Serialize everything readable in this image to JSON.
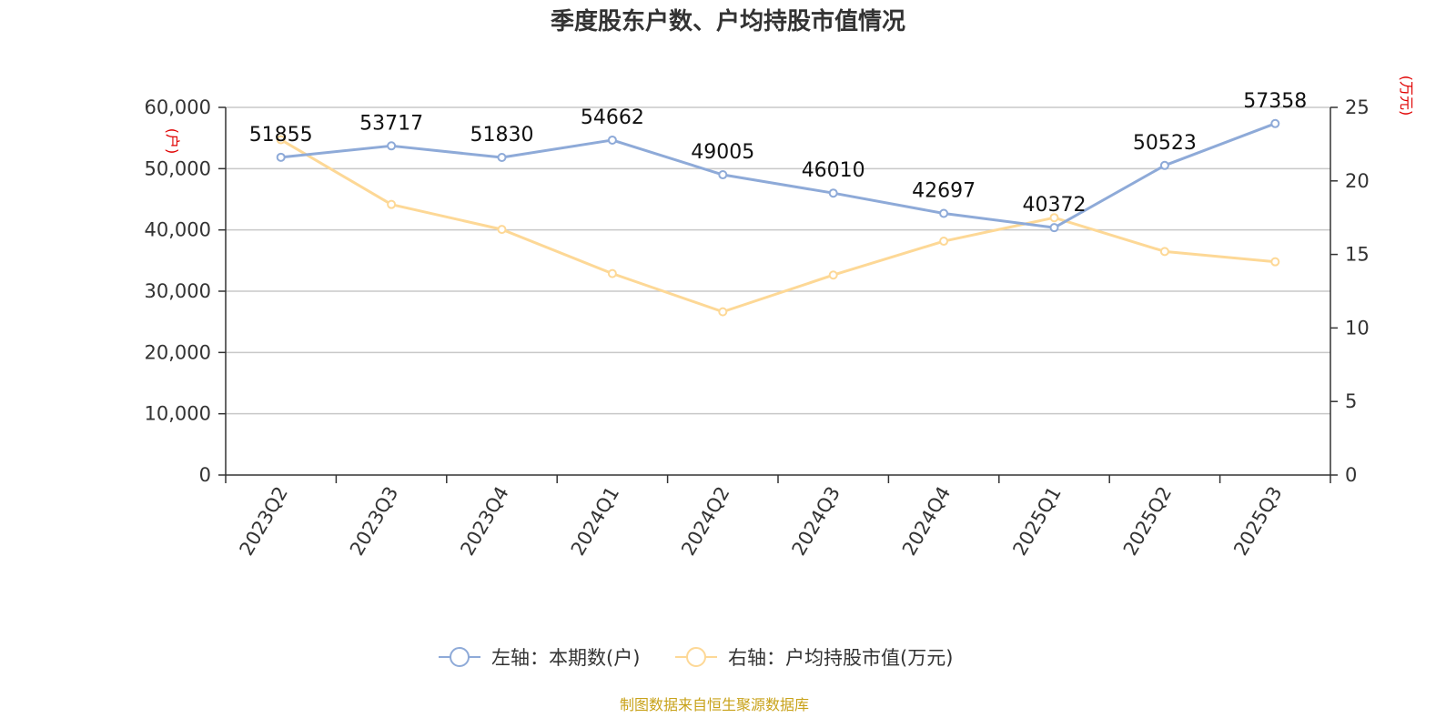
{
  "chart_data": {
    "type": "line",
    "title": "季度股东户数、户均持股市值情况",
    "categories": [
      "2023Q2",
      "2023Q3",
      "2023Q4",
      "2024Q1",
      "2024Q2",
      "2024Q3",
      "2024Q4",
      "2025Q1",
      "2025Q2",
      "2025Q3"
    ],
    "left_axis": {
      "unit": "(户)",
      "min": 0,
      "max": 60000,
      "ticks": [
        "0",
        "10,000",
        "20,000",
        "30,000",
        "40,000",
        "50,000",
        "60,000"
      ]
    },
    "right_axis": {
      "unit": "(万元)",
      "min": 0,
      "max": 25,
      "ticks": [
        "0",
        "5",
        "10",
        "15",
        "20",
        "25"
      ]
    },
    "series": [
      {
        "name": "左轴：本期数(户)",
        "axis": "left",
        "color": "#8eaad8",
        "values": [
          51855,
          53717,
          51830,
          54662,
          49005,
          46010,
          42697,
          40372,
          50523,
          57358
        ],
        "labels": [
          "51855",
          "53717",
          "51830",
          "54662",
          "49005",
          "46010",
          "42697",
          "40372",
          "50523",
          "57358"
        ]
      },
      {
        "name": "右轴：户均持股市值(万元)",
        "axis": "right",
        "color": "#fdd896",
        "values": [
          22.8,
          18.4,
          16.7,
          13.7,
          11.1,
          13.6,
          15.9,
          17.5,
          15.2,
          14.5
        ]
      }
    ],
    "grid": true,
    "legend": "bottom-center",
    "source": "制图数据来自恒生聚源数据库"
  }
}
